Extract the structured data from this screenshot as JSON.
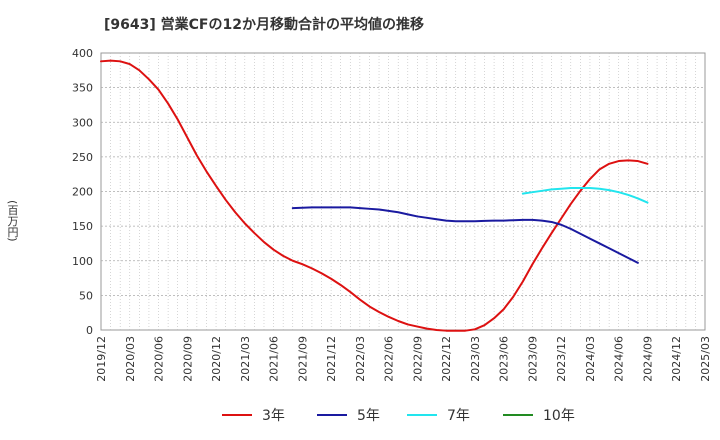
{
  "chart_data": {
    "type": "line",
    "title": "[9643]  営業CFの12か月移動合計の平均値の推移",
    "ylabel": "(百万円)",
    "xlabel": "",
    "ylim": [
      0,
      400
    ],
    "yticks": [
      0,
      50,
      100,
      150,
      200,
      250,
      300,
      350,
      400
    ],
    "xticks": [
      "2019/12",
      "2020/03",
      "2020/06",
      "2020/09",
      "2020/12",
      "2021/03",
      "2021/06",
      "2021/09",
      "2021/12",
      "2022/03",
      "2022/06",
      "2022/09",
      "2022/12",
      "2023/03",
      "2023/06",
      "2023/09",
      "2023/12",
      "2024/03",
      "2024/06",
      "2024/09",
      "2024/12",
      "2025/03"
    ],
    "grid": true,
    "legend_position": "bottom",
    "series": [
      {
        "name": "3年",
        "color": "#dd1111",
        "points": [
          [
            "2019/12",
            388
          ],
          [
            "2020/01",
            389
          ],
          [
            "2020/02",
            388
          ],
          [
            "2020/03",
            384
          ],
          [
            "2020/04",
            375
          ],
          [
            "2020/05",
            362
          ],
          [
            "2020/06",
            347
          ],
          [
            "2020/07",
            327
          ],
          [
            "2020/08",
            304
          ],
          [
            "2020/09",
            278
          ],
          [
            "2020/10",
            252
          ],
          [
            "2020/11",
            229
          ],
          [
            "2020/12",
            208
          ],
          [
            "2021/01",
            188
          ],
          [
            "2021/02",
            170
          ],
          [
            "2021/03",
            154
          ],
          [
            "2021/04",
            140
          ],
          [
            "2021/05",
            127
          ],
          [
            "2021/06",
            116
          ],
          [
            "2021/07",
            107
          ],
          [
            "2021/08",
            100
          ],
          [
            "2021/09",
            95
          ],
          [
            "2021/10",
            89
          ],
          [
            "2021/11",
            82
          ],
          [
            "2021/12",
            74
          ],
          [
            "2022/01",
            65
          ],
          [
            "2022/02",
            55
          ],
          [
            "2022/03",
            44
          ],
          [
            "2022/04",
            34
          ],
          [
            "2022/05",
            26
          ],
          [
            "2022/06",
            19
          ],
          [
            "2022/07",
            13
          ],
          [
            "2022/08",
            8
          ],
          [
            "2022/09",
            5
          ],
          [
            "2022/10",
            2
          ],
          [
            "2022/11",
            0
          ],
          [
            "2022/12",
            -1
          ],
          [
            "2023/01",
            -1
          ],
          [
            "2023/02",
            -1
          ],
          [
            "2023/03",
            1
          ],
          [
            "2023/04",
            7
          ],
          [
            "2023/05",
            17
          ],
          [
            "2023/06",
            30
          ],
          [
            "2023/07",
            48
          ],
          [
            "2023/08",
            70
          ],
          [
            "2023/09",
            95
          ],
          [
            "2023/10",
            118
          ],
          [
            "2023/11",
            140
          ],
          [
            "2023/12",
            161
          ],
          [
            "2024/01",
            182
          ],
          [
            "2024/02",
            201
          ],
          [
            "2024/03",
            218
          ],
          [
            "2024/04",
            232
          ],
          [
            "2024/05",
            240
          ],
          [
            "2024/06",
            244
          ],
          [
            "2024/07",
            245
          ],
          [
            "2024/08",
            244
          ],
          [
            "2024/09",
            240
          ]
        ]
      },
      {
        "name": "5年",
        "color": "#1a1aa0",
        "points": [
          [
            "2021/08",
            176
          ],
          [
            "2021/09",
            176.5
          ],
          [
            "2021/10",
            177
          ],
          [
            "2021/11",
            177
          ],
          [
            "2021/12",
            177
          ],
          [
            "2022/01",
            177
          ],
          [
            "2022/02",
            177
          ],
          [
            "2022/03",
            176
          ],
          [
            "2022/04",
            175
          ],
          [
            "2022/05",
            174
          ],
          [
            "2022/06",
            172
          ],
          [
            "2022/07",
            170
          ],
          [
            "2022/08",
            167
          ],
          [
            "2022/09",
            164
          ],
          [
            "2022/10",
            162
          ],
          [
            "2022/11",
            160
          ],
          [
            "2022/12",
            158
          ],
          [
            "2023/01",
            157
          ],
          [
            "2023/02",
            157
          ],
          [
            "2023/03",
            157
          ],
          [
            "2023/04",
            157.5
          ],
          [
            "2023/05",
            158
          ],
          [
            "2023/06",
            158
          ],
          [
            "2023/07",
            158.5
          ],
          [
            "2023/08",
            159
          ],
          [
            "2023/09",
            159
          ],
          [
            "2023/10",
            158
          ],
          [
            "2023/11",
            156
          ],
          [
            "2023/12",
            152
          ],
          [
            "2024/01",
            146
          ],
          [
            "2024/02",
            139
          ],
          [
            "2024/03",
            132
          ],
          [
            "2024/04",
            125
          ],
          [
            "2024/05",
            118
          ],
          [
            "2024/06",
            111
          ],
          [
            "2024/07",
            104
          ],
          [
            "2024/08",
            97
          ]
        ]
      },
      {
        "name": "7年",
        "color": "#22e5ee",
        "points": [
          [
            "2023/08",
            197
          ],
          [
            "2023/09",
            199
          ],
          [
            "2023/10",
            201
          ],
          [
            "2023/11",
            203
          ],
          [
            "2023/12",
            204
          ],
          [
            "2024/01",
            205
          ],
          [
            "2024/02",
            205
          ],
          [
            "2024/03",
            205
          ],
          [
            "2024/04",
            204
          ],
          [
            "2024/05",
            202
          ],
          [
            "2024/06",
            199
          ],
          [
            "2024/07",
            195
          ],
          [
            "2024/08",
            190
          ],
          [
            "2024/09",
            184
          ]
        ]
      },
      {
        "name": "10年",
        "color": "#228b22",
        "points": []
      }
    ]
  }
}
